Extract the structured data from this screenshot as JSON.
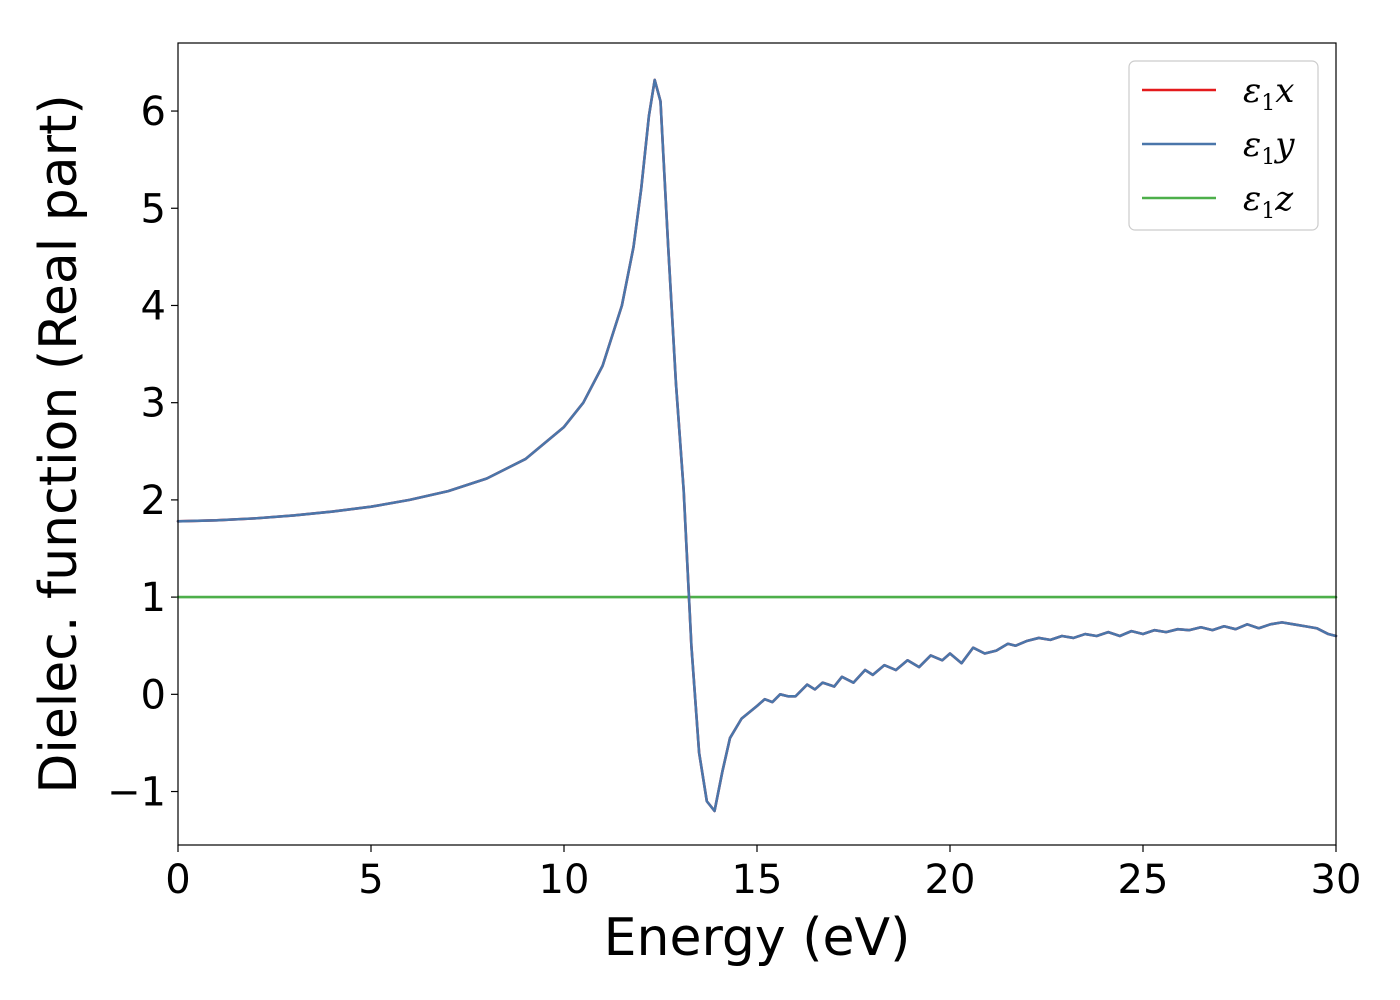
{
  "chart_data": {
    "type": "line",
    "title": "",
    "xlabel": "Energy (eV)",
    "ylabel": "Dielec. function (Real part)",
    "xlim": [
      0,
      30
    ],
    "ylim": [
      -1.55,
      6.7
    ],
    "xticks": [
      0,
      5,
      10,
      15,
      20,
      25,
      30
    ],
    "xtick_labels": [
      "0",
      "5",
      "10",
      "15",
      "20",
      "25",
      "30"
    ],
    "yticks": [
      -1,
      0,
      1,
      2,
      3,
      4,
      5,
      6
    ],
    "ytick_labels": [
      "−1",
      "0",
      "1",
      "2",
      "3",
      "4",
      "5",
      "6"
    ],
    "grid": false,
    "legend_position": "top-right",
    "series": [
      {
        "name": "ε₁x",
        "legend_symbol": "ε",
        "legend_sub": "1",
        "legend_comp": "x",
        "color": "#e41a1c",
        "x": [
          0,
          1,
          2,
          3,
          4,
          5,
          6,
          7,
          8,
          9,
          10,
          10.5,
          11,
          11.5,
          11.8,
          12.0,
          12.2,
          12.35,
          12.5,
          12.7,
          12.9,
          13.1,
          13.3,
          13.5,
          13.7,
          13.9,
          14.1,
          14.3,
          14.6,
          15.0,
          15.2,
          15.4,
          15.6,
          15.8,
          16.0,
          16.3,
          16.5,
          16.7,
          17.0,
          17.2,
          17.5,
          17.8,
          18.0,
          18.3,
          18.6,
          18.9,
          19.2,
          19.5,
          19.8,
          20.0,
          20.3,
          20.6,
          20.9,
          21.2,
          21.5,
          21.7,
          22.0,
          22.3,
          22.6,
          22.9,
          23.2,
          23.5,
          23.8,
          24.1,
          24.4,
          24.7,
          25.0,
          25.3,
          25.6,
          25.9,
          26.2,
          26.5,
          26.8,
          27.1,
          27.4,
          27.7,
          28.0,
          28.3,
          28.6,
          28.9,
          29.2,
          29.5,
          29.8,
          30.0
        ],
        "y": [
          1.78,
          1.79,
          1.81,
          1.84,
          1.88,
          1.93,
          2.0,
          2.09,
          2.22,
          2.42,
          2.75,
          3.0,
          3.38,
          4.0,
          4.6,
          5.2,
          5.95,
          6.32,
          6.1,
          4.6,
          3.2,
          2.1,
          0.5,
          -0.6,
          -1.1,
          -1.2,
          -0.8,
          -0.45,
          -0.25,
          -0.12,
          -0.05,
          -0.08,
          0.0,
          -0.02,
          -0.02,
          0.1,
          0.05,
          0.12,
          0.08,
          0.18,
          0.12,
          0.25,
          0.2,
          0.3,
          0.25,
          0.35,
          0.28,
          0.4,
          0.35,
          0.42,
          0.32,
          0.48,
          0.42,
          0.45,
          0.52,
          0.5,
          0.55,
          0.58,
          0.56,
          0.6,
          0.58,
          0.62,
          0.6,
          0.64,
          0.6,
          0.65,
          0.62,
          0.66,
          0.64,
          0.67,
          0.66,
          0.69,
          0.66,
          0.7,
          0.67,
          0.72,
          0.68,
          0.72,
          0.74,
          0.72,
          0.7,
          0.68,
          0.62,
          0.6
        ]
      },
      {
        "name": "ε₁y",
        "legend_symbol": "ε",
        "legend_sub": "1",
        "legend_comp": "y",
        "color": "#4a76aa",
        "x": [
          0,
          1,
          2,
          3,
          4,
          5,
          6,
          7,
          8,
          9,
          10,
          10.5,
          11,
          11.5,
          11.8,
          12.0,
          12.2,
          12.35,
          12.5,
          12.7,
          12.9,
          13.1,
          13.3,
          13.5,
          13.7,
          13.9,
          14.1,
          14.3,
          14.6,
          15.0,
          15.2,
          15.4,
          15.6,
          15.8,
          16.0,
          16.3,
          16.5,
          16.7,
          17.0,
          17.2,
          17.5,
          17.8,
          18.0,
          18.3,
          18.6,
          18.9,
          19.2,
          19.5,
          19.8,
          20.0,
          20.3,
          20.6,
          20.9,
          21.2,
          21.5,
          21.7,
          22.0,
          22.3,
          22.6,
          22.9,
          23.2,
          23.5,
          23.8,
          24.1,
          24.4,
          24.7,
          25.0,
          25.3,
          25.6,
          25.9,
          26.2,
          26.5,
          26.8,
          27.1,
          27.4,
          27.7,
          28.0,
          28.3,
          28.6,
          28.9,
          29.2,
          29.5,
          29.8,
          30.0
        ],
        "y": [
          1.78,
          1.79,
          1.81,
          1.84,
          1.88,
          1.93,
          2.0,
          2.09,
          2.22,
          2.42,
          2.75,
          3.0,
          3.38,
          4.0,
          4.6,
          5.2,
          5.95,
          6.32,
          6.1,
          4.6,
          3.2,
          2.1,
          0.5,
          -0.6,
          -1.1,
          -1.2,
          -0.8,
          -0.45,
          -0.25,
          -0.12,
          -0.05,
          -0.08,
          0.0,
          -0.02,
          -0.02,
          0.1,
          0.05,
          0.12,
          0.08,
          0.18,
          0.12,
          0.25,
          0.2,
          0.3,
          0.25,
          0.35,
          0.28,
          0.4,
          0.35,
          0.42,
          0.32,
          0.48,
          0.42,
          0.45,
          0.52,
          0.5,
          0.55,
          0.58,
          0.56,
          0.6,
          0.58,
          0.62,
          0.6,
          0.64,
          0.6,
          0.65,
          0.62,
          0.66,
          0.64,
          0.67,
          0.66,
          0.69,
          0.66,
          0.7,
          0.67,
          0.72,
          0.68,
          0.72,
          0.74,
          0.72,
          0.7,
          0.68,
          0.62,
          0.6
        ]
      },
      {
        "name": "ε₁z",
        "legend_symbol": "ε",
        "legend_sub": "1",
        "legend_comp": "z",
        "color": "#4daf4a",
        "x": [
          0,
          30
        ],
        "y": [
          1.0,
          1.0
        ]
      }
    ]
  }
}
